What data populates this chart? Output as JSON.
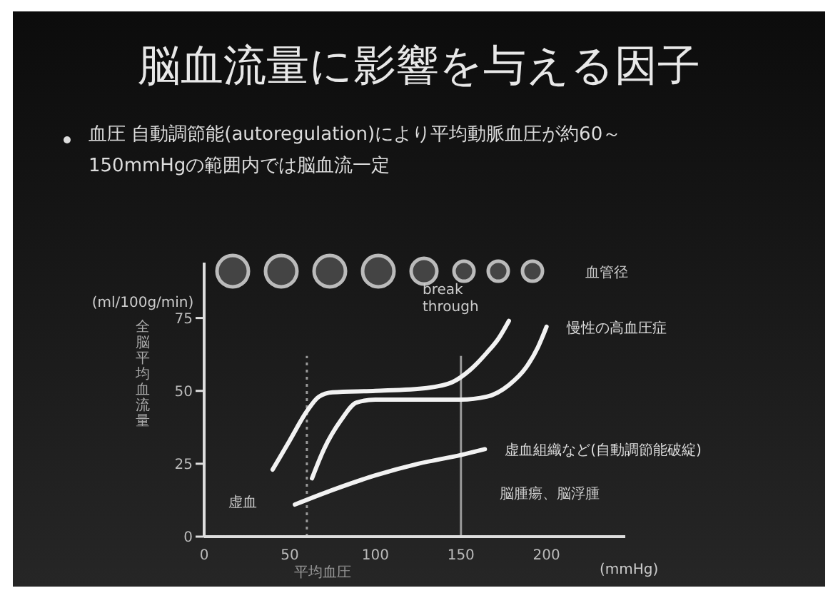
{
  "chart_data": {
    "type": "line",
    "title": "脳血流量に影響を与える因子",
    "subtitle": "血圧 自動調節能(autoregulation)により平均動脈血圧が約60～150mmHgの範囲内では脳血流一定",
    "xlabel": "平均血圧",
    "ylabel": "全脳平均血流量",
    "xlim": [
      0,
      246
    ],
    "ylim": [
      0,
      94
    ],
    "xticks": [
      0,
      50,
      100,
      150,
      200
    ],
    "yticks": [
      0,
      25,
      50,
      75
    ],
    "grid": false,
    "marker": "none",
    "line_style": "solid",
    "series": [
      {
        "color": "#f2f2f2",
        "x": [
          40,
          50,
          60,
          67,
          75,
          100,
          130,
          145,
          155,
          165,
          172,
          178
        ],
        "values": [
          23,
          33,
          43,
          48,
          49.5,
          50,
          51,
          53,
          57,
          63,
          68,
          74
        ]
      },
      {
        "color": "#f2f2f2",
        "x": [
          63,
          70,
          80,
          89,
          100,
          150,
          165,
          178,
          188,
          195,
          200
        ],
        "values": [
          20,
          30,
          40,
          46,
          47,
          47,
          48,
          52,
          58,
          65,
          72
        ]
      },
      {
        "color": "#f2f2f2",
        "x": [
          53,
          75,
          100,
          125,
          150,
          164
        ],
        "values": [
          11,
          16,
          21,
          25,
          28,
          30
        ]
      }
    ],
    "ref_lines": [
      {
        "axis": "x",
        "value": 60,
        "color": "#9a9a9a",
        "line_style": "dotted"
      },
      {
        "axis": "x",
        "value": 150,
        "color": "#9a9a9a",
        "line_style": "solid"
      }
    ],
    "annotations": [
      "break through",
      {
        "text": "慢性の高血圧症",
        "x": 200,
        "y": 72
      },
      {
        "text": "虚血組織など(自動調節能破綻)",
        "x": 164,
        "y": 30
      },
      "脳腫瘍、脳浮腫",
      "虚血",
      "(ml/100g/min)",
      "(mmHg)",
      "血管径"
    ]
  }
}
